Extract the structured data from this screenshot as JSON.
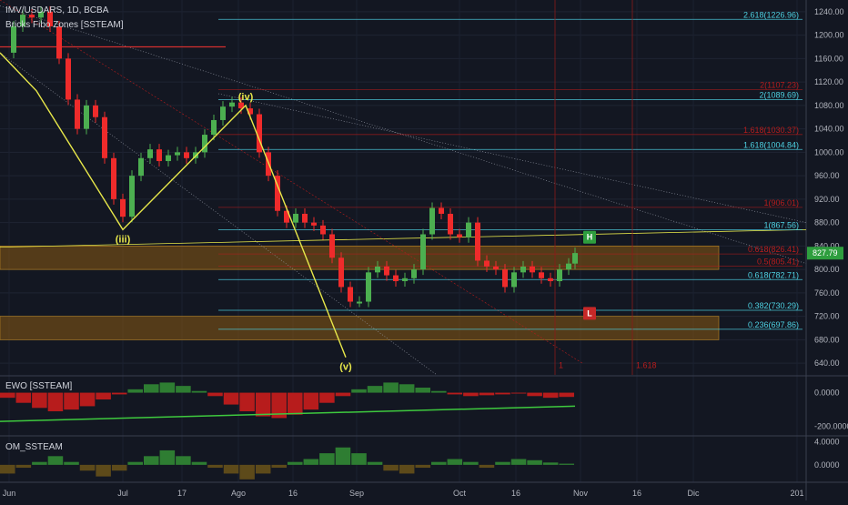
{
  "header": {
    "symbol_line": "IMV/USDARS, 1D, BCBA",
    "indicator": "Bricks Fibo Zones [SSTEAM]"
  },
  "panels": {
    "ewo_label": "EWO [SSTEAM]",
    "om_label": "OM_SSTEAM"
  },
  "colors": {
    "background": "#131722",
    "bull": "#26a69a",
    "bear": "#ef2b2b",
    "bull_bright": "#4caf50",
    "wave": "#e8e84a",
    "fib_cyan": "#4dd0e1",
    "fib_red": "#b71c1c",
    "zone": "#8a5a12",
    "ewo_line": "#3ec93e"
  },
  "chart_data": [
    {
      "type": "line",
      "title": "IMV/USDARS, 1D, BCBA",
      "ylim": [
        620,
        1260
      ],
      "y_ticks": [
        "1240.00",
        "1200.00",
        "1160.00",
        "1120.00",
        "1080.00",
        "1040.00",
        "1000.00",
        "960.00",
        "920.00",
        "880.00",
        "840.00",
        "800.00",
        "760.00",
        "720.00",
        "680.00",
        "640.00"
      ],
      "x_ticks": [
        "Jun",
        "Jul",
        "17",
        "Ago",
        "16",
        "Sep",
        "Oct",
        "16",
        "Nov",
        "16",
        "Dic",
        "201"
      ],
      "current_price_label": "827.79",
      "price_path": [
        {
          "x": 0,
          "y": 1170
        },
        {
          "x": 15,
          "y": 1215
        },
        {
          "x": 25,
          "y": 1235
        },
        {
          "x": 35,
          "y": 1230
        },
        {
          "x": 45,
          "y": 1240
        },
        {
          "x": 55,
          "y": 1215
        },
        {
          "x": 65,
          "y": 1160
        },
        {
          "x": 75,
          "y": 1090
        },
        {
          "x": 85,
          "y": 1040
        },
        {
          "x": 95,
          "y": 1080
        },
        {
          "x": 105,
          "y": 1060
        },
        {
          "x": 115,
          "y": 990
        },
        {
          "x": 125,
          "y": 920
        },
        {
          "x": 135,
          "y": 890
        },
        {
          "x": 145,
          "y": 960
        },
        {
          "x": 155,
          "y": 990
        },
        {
          "x": 165,
          "y": 1005
        },
        {
          "x": 175,
          "y": 985
        },
        {
          "x": 185,
          "y": 995
        },
        {
          "x": 195,
          "y": 1000
        },
        {
          "x": 205,
          "y": 990
        },
        {
          "x": 215,
          "y": 1000
        },
        {
          "x": 225,
          "y": 1030
        },
        {
          "x": 235,
          "y": 1055
        },
        {
          "x": 245,
          "y": 1078
        },
        {
          "x": 255,
          "y": 1085
        },
        {
          "x": 265,
          "y": 1075
        },
        {
          "x": 275,
          "y": 1065
        },
        {
          "x": 285,
          "y": 1000
        },
        {
          "x": 295,
          "y": 960
        },
        {
          "x": 305,
          "y": 900
        },
        {
          "x": 315,
          "y": 880
        },
        {
          "x": 325,
          "y": 895
        },
        {
          "x": 335,
          "y": 880
        },
        {
          "x": 345,
          "y": 875
        },
        {
          "x": 355,
          "y": 860
        },
        {
          "x": 365,
          "y": 820
        },
        {
          "x": 375,
          "y": 770
        },
        {
          "x": 385,
          "y": 745
        },
        {
          "x": 395,
          "y": 745
        },
        {
          "x": 405,
          "y": 795
        },
        {
          "x": 415,
          "y": 805
        },
        {
          "x": 425,
          "y": 790
        },
        {
          "x": 435,
          "y": 780
        },
        {
          "x": 445,
          "y": 785
        },
        {
          "x": 455,
          "y": 800
        },
        {
          "x": 465,
          "y": 860
        },
        {
          "x": 475,
          "y": 905
        },
        {
          "x": 485,
          "y": 895
        },
        {
          "x": 495,
          "y": 860
        },
        {
          "x": 505,
          "y": 855
        },
        {
          "x": 515,
          "y": 880
        },
        {
          "x": 525,
          "y": 815
        },
        {
          "x": 535,
          "y": 805
        },
        {
          "x": 545,
          "y": 800
        },
        {
          "x": 555,
          "y": 770
        },
        {
          "x": 565,
          "y": 795
        },
        {
          "x": 575,
          "y": 805
        },
        {
          "x": 585,
          "y": 795
        },
        {
          "x": 595,
          "y": 785
        },
        {
          "x": 605,
          "y": 780
        },
        {
          "x": 615,
          "y": 800
        },
        {
          "x": 625,
          "y": 810
        },
        {
          "x": 632,
          "y": 828
        }
      ],
      "wave_points": [
        {
          "x": 0,
          "y": 1170
        },
        {
          "x": 40,
          "y": 1105
        },
        {
          "x": 135,
          "y": 868
        },
        {
          "x": 270,
          "y": 1080
        },
        {
          "x": 380,
          "y": 650
        },
        {
          "x": 0,
          "y": 0
        }
      ],
      "wave_labels": [
        {
          "label": "(iii)",
          "x": 135,
          "y": 868
        },
        {
          "label": "(iv)",
          "x": 270,
          "y": 1080
        },
        {
          "label": "(v)",
          "x": 380,
          "y": 650
        }
      ],
      "fib_levels": [
        {
          "label": "2.618(1226.96)",
          "value": 1226.96,
          "color": "cyan"
        },
        {
          "label": "2(1107.23)",
          "value": 1107.23,
          "color": "red"
        },
        {
          "label": "2(1089.69)",
          "value": 1089.69,
          "color": "cyan"
        },
        {
          "label": "1.618(1030.37)",
          "value": 1030.37,
          "color": "red"
        },
        {
          "label": "1.618(1004.84)",
          "value": 1004.84,
          "color": "cyan"
        },
        {
          "label": "1(906.01)",
          "value": 906.01,
          "color": "red"
        },
        {
          "label": "1(867.56)",
          "value": 867.56,
          "color": "cyan"
        },
        {
          "label": "0.618(826.41)",
          "value": 826.41,
          "color": "red"
        },
        {
          "label": "0.5(805.41)",
          "value": 805.41,
          "color": "red"
        },
        {
          "label": "0.618(782.71)",
          "value": 782.71,
          "color": "cyan"
        },
        {
          "label": "0.382(730.29)",
          "value": 730.29,
          "color": "cyan"
        },
        {
          "label": "0.236(697.86)",
          "value": 697.86,
          "color": "cyan"
        }
      ],
      "zones": [
        {
          "from": 800,
          "to": 840
        },
        {
          "from": 680,
          "to": 720
        }
      ],
      "markers": [
        {
          "label": "H",
          "x": 648,
          "y": 855,
          "kind": "up"
        },
        {
          "label": "L",
          "x": 648,
          "y": 725,
          "kind": "down"
        }
      ],
      "vertical_labels": [
        {
          "label": "1",
          "x": 610
        },
        {
          "label": "1.618",
          "x": 695
        }
      ]
    },
    {
      "type": "bar",
      "title": "EWO [SSTEAM]",
      "y_ticks": [
        "0.0000",
        "-200.0000"
      ],
      "ylim": [
        -250,
        100
      ],
      "series": [
        {
          "name": "EWO",
          "values": [
            -30,
            -60,
            -90,
            -110,
            -100,
            -80,
            -40,
            -10,
            20,
            50,
            60,
            40,
            10,
            -20,
            -70,
            -110,
            -140,
            -150,
            -130,
            -100,
            -60,
            -20,
            20,
            40,
            60,
            50,
            30,
            10,
            -10,
            -20,
            -15,
            -10,
            -5,
            -20,
            -30,
            -25
          ]
        }
      ]
    },
    {
      "type": "bar",
      "title": "OM_SSTEAM",
      "y_ticks": [
        "4.0000",
        "0.0000"
      ],
      "ylim": [
        -3,
        5
      ],
      "series": [
        {
          "name": "OM",
          "values": [
            -1.5,
            -0.5,
            0.5,
            1.5,
            0.5,
            -1.0,
            -2.0,
            -1.0,
            0.5,
            1.5,
            2.5,
            1.5,
            0.5,
            -0.5,
            -1.5,
            -2.5,
            -1.5,
            -0.5,
            0.5,
            1.0,
            2.0,
            3.0,
            2.0,
            0.5,
            -1.0,
            -1.5,
            -0.5,
            0.5,
            1.0,
            0.5,
            -0.5,
            0.5,
            1.0,
            0.8,
            0.4,
            0.2
          ]
        }
      ]
    }
  ]
}
